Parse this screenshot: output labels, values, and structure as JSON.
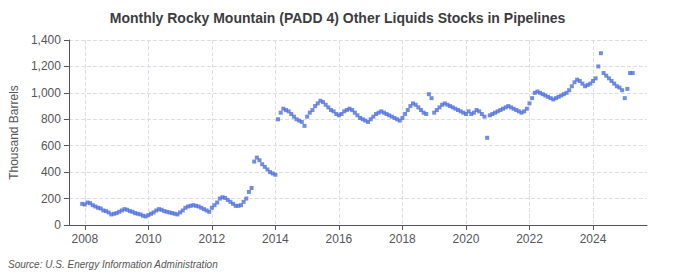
{
  "chart_data": {
    "type": "scatter",
    "title": "Monthly Rocky Mountain (PADD 4) Other Liquids Stocks in Pipelines",
    "ylabel": "Thousand Barrels",
    "annotations": [
      "Source: U.S. Energy Information Administration"
    ],
    "marker": "square",
    "grid": true,
    "xlim": [
      2007.5,
      2025.7
    ],
    "xticks": [
      2008,
      2010,
      2012,
      2014,
      2016,
      2018,
      2020,
      2022,
      2024
    ],
    "ylim": [
      0,
      1400
    ],
    "yticks": [
      0,
      200,
      400,
      600,
      800,
      {
        "value": 1000,
        "label": "1,000"
      },
      {
        "value": 1200,
        "label": "1,200"
      },
      {
        "value": 1400,
        "label": "1,400"
      }
    ],
    "x": [
      2007.917,
      2008.0,
      2008.083,
      2008.167,
      2008.25,
      2008.333,
      2008.417,
      2008.5,
      2008.583,
      2008.667,
      2008.75,
      2008.833,
      2008.917,
      2009.0,
      2009.083,
      2009.167,
      2009.25,
      2009.333,
      2009.417,
      2009.5,
      2009.583,
      2009.667,
      2009.75,
      2009.833,
      2009.917,
      2010.0,
      2010.083,
      2010.167,
      2010.25,
      2010.333,
      2010.417,
      2010.5,
      2010.583,
      2010.667,
      2010.75,
      2010.833,
      2010.917,
      2011.0,
      2011.083,
      2011.167,
      2011.25,
      2011.333,
      2011.417,
      2011.5,
      2011.583,
      2011.667,
      2011.75,
      2011.833,
      2011.917,
      2012.0,
      2012.083,
      2012.167,
      2012.25,
      2012.333,
      2012.417,
      2012.5,
      2012.583,
      2012.667,
      2012.75,
      2012.833,
      2012.917,
      2013.0,
      2013.083,
      2013.167,
      2013.25,
      2013.333,
      2013.417,
      2013.5,
      2013.583,
      2013.667,
      2013.75,
      2013.833,
      2013.917,
      2014.0,
      2014.083,
      2014.167,
      2014.25,
      2014.333,
      2014.417,
      2014.5,
      2014.583,
      2014.667,
      2014.75,
      2014.833,
      2014.917,
      2015.0,
      2015.083,
      2015.167,
      2015.25,
      2015.333,
      2015.417,
      2015.5,
      2015.583,
      2015.667,
      2015.75,
      2015.833,
      2015.917,
      2016.0,
      2016.083,
      2016.167,
      2016.25,
      2016.333,
      2016.417,
      2016.5,
      2016.583,
      2016.667,
      2016.75,
      2016.833,
      2016.917,
      2017.0,
      2017.083,
      2017.167,
      2017.25,
      2017.333,
      2017.417,
      2017.5,
      2017.583,
      2017.667,
      2017.75,
      2017.833,
      2017.917,
      2018.0,
      2018.083,
      2018.167,
      2018.25,
      2018.333,
      2018.417,
      2018.5,
      2018.583,
      2018.667,
      2018.75,
      2018.833,
      2018.917,
      2019.0,
      2019.083,
      2019.167,
      2019.25,
      2019.333,
      2019.417,
      2019.5,
      2019.583,
      2019.667,
      2019.75,
      2019.833,
      2019.917,
      2020.0,
      2020.083,
      2020.167,
      2020.25,
      2020.333,
      2020.417,
      2020.5,
      2020.583,
      2020.667,
      2020.75,
      2020.833,
      2020.917,
      2021.0,
      2021.083,
      2021.167,
      2021.25,
      2021.333,
      2021.417,
      2021.5,
      2021.583,
      2021.667,
      2021.75,
      2021.833,
      2021.917,
      2022.0,
      2022.083,
      2022.167,
      2022.25,
      2022.333,
      2022.417,
      2022.5,
      2022.583,
      2022.667,
      2022.75,
      2022.833,
      2022.917,
      2023.0,
      2023.083,
      2023.167,
      2023.25,
      2023.333,
      2023.417,
      2023.5,
      2023.583,
      2023.667,
      2023.75,
      2023.833,
      2023.917,
      2024.0,
      2024.083,
      2024.167,
      2024.25,
      2024.333,
      2024.417,
      2024.5,
      2024.583,
      2024.667,
      2024.75,
      2024.833,
      2024.917,
      2025.0,
      2025.083,
      2025.167,
      2025.25
    ],
    "values": [
      160,
      155,
      170,
      165,
      150,
      140,
      130,
      125,
      110,
      105,
      95,
      80,
      85,
      90,
      100,
      110,
      120,
      115,
      105,
      100,
      90,
      85,
      80,
      70,
      65,
      75,
      85,
      95,
      110,
      120,
      115,
      105,
      100,
      95,
      90,
      85,
      80,
      95,
      110,
      130,
      140,
      145,
      150,
      145,
      140,
      130,
      120,
      110,
      100,
      130,
      150,
      170,
      200,
      210,
      205,
      190,
      175,
      160,
      145,
      145,
      150,
      175,
      200,
      250,
      280,
      480,
      510,
      490,
      460,
      440,
      420,
      400,
      390,
      380,
      800,
      850,
      880,
      870,
      860,
      840,
      820,
      800,
      790,
      780,
      750,
      820,
      850,
      870,
      900,
      920,
      940,
      930,
      910,
      890,
      870,
      860,
      840,
      830,
      840,
      860,
      870,
      880,
      870,
      850,
      830,
      810,
      800,
      790,
      780,
      800,
      820,
      840,
      850,
      860,
      850,
      840,
      830,
      820,
      810,
      800,
      790,
      810,
      840,
      870,
      900,
      920,
      910,
      890,
      870,
      850,
      840,
      990,
      960,
      850,
      870,
      890,
      910,
      920,
      910,
      900,
      890,
      880,
      870,
      860,
      850,
      840,
      860,
      840,
      850,
      870,
      860,
      840,
      820,
      660,
      830,
      840,
      850,
      860,
      870,
      880,
      890,
      900,
      890,
      880,
      870,
      860,
      850,
      860,
      880,
      920,
      960,
      1000,
      1010,
      1000,
      990,
      980,
      970,
      960,
      950,
      960,
      970,
      980,
      990,
      1000,
      1020,
      1050,
      1080,
      1100,
      1090,
      1070,
      1050,
      1060,
      1070,
      1090,
      1110,
      1200,
      1300,
      1150,
      1130,
      1110,
      1090,
      1070,
      1050,
      1040,
      1020,
      960,
      1030,
      1150,
      1150
    ]
  }
}
